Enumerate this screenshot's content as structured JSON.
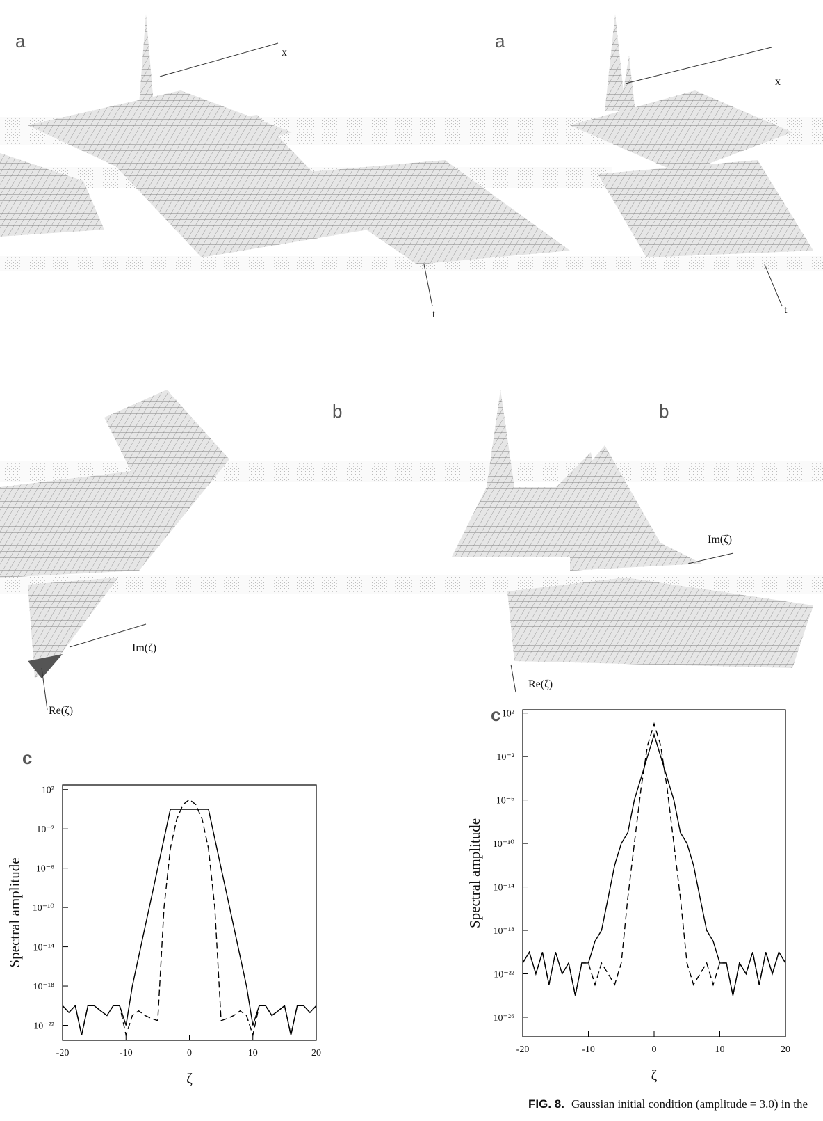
{
  "panels": {
    "a_left": {
      "label": "a",
      "x_axis": "x",
      "t_axis": "t"
    },
    "a_right": {
      "label": "a",
      "x_axis": "x",
      "t_axis": "t"
    },
    "b_left": {
      "label": "b",
      "im_axis": "Im(ζ)",
      "re_axis": "Re(ζ)"
    },
    "b_right": {
      "label": "b",
      "im_axis": "Im(ζ)",
      "re_axis": "Re(ζ)"
    }
  },
  "charts": [
    {
      "type": "line",
      "panel": "c",
      "ylabel": "Spectral amplitude",
      "xlabel": "ζ",
      "log_y": true,
      "xlim": [
        -20,
        20
      ],
      "xticks": [
        -20,
        -10,
        0,
        10,
        20
      ],
      "ylim": [
        3e-24,
        300
      ],
      "yticks": [
        {
          "value": 100,
          "label": "10²"
        },
        {
          "value": 0.01,
          "label": "10⁻²"
        },
        {
          "value": 1e-06,
          "label": "10⁻⁶"
        },
        {
          "value": 1e-10,
          "label": "10⁻¹⁰"
        },
        {
          "value": 1e-14,
          "label": "10⁻¹⁴"
        },
        {
          "value": 1e-18,
          "label": "10⁻¹⁸"
        },
        {
          "value": 1e-22,
          "label": "10⁻²²"
        }
      ],
      "x": [
        -20,
        -19,
        -18,
        -17,
        -16,
        -15,
        -14,
        -13,
        -12,
        -11,
        -10,
        -9,
        -8,
        -7,
        -6,
        -5,
        -4,
        -3,
        -2,
        -1,
        0,
        1,
        2,
        3,
        4,
        5,
        6,
        7,
        8,
        9,
        10,
        11,
        12,
        13,
        14,
        15,
        16,
        17,
        18,
        19,
        20
      ],
      "series": [
        {
          "color": "#000",
          "dash": false,
          "values": [
            1e-20,
            2e-21,
            1e-20,
            1e-23,
            1e-20,
            1e-20,
            3e-21,
            1e-21,
            1e-20,
            1e-20,
            1e-22,
            1e-18,
            1e-15,
            1e-12,
            1e-09,
            1e-06,
            0.001,
            1,
            1,
            1,
            1,
            1,
            1,
            1,
            0.001,
            1e-06,
            1e-09,
            1e-12,
            1e-15,
            1e-18,
            1e-22,
            1e-20,
            1e-20,
            1e-21,
            3e-21,
            1e-20,
            1e-23,
            1e-20,
            1e-20,
            2e-21,
            1e-20
          ]
        },
        {
          "color": "#000",
          "dash": true,
          "values": [
            1e-20,
            2e-21,
            1e-20,
            1e-23,
            1e-20,
            1e-20,
            3e-21,
            1e-21,
            1e-20,
            1e-20,
            1e-23,
            1e-21,
            3e-21,
            1e-21,
            5e-22,
            3e-22,
            1e-10,
            0.0001,
            0.1,
            3,
            10,
            3,
            0.1,
            0.0001,
            1e-10,
            3e-22,
            5e-22,
            1e-21,
            3e-21,
            1e-21,
            1e-23,
            1e-20,
            1e-20,
            1e-21,
            3e-21,
            1e-20,
            1e-23,
            1e-20,
            1e-20,
            2e-21,
            1e-20
          ]
        }
      ]
    },
    {
      "type": "line",
      "panel": "c",
      "ylabel": "Spectral amplitude",
      "xlabel": "ζ",
      "log_y": true,
      "xlim": [
        -20,
        20
      ],
      "xticks": [
        -20,
        -10,
        0,
        10,
        20
      ],
      "ylim": [
        1.6e-28,
        200
      ],
      "yticks": [
        {
          "value": 100,
          "label": "10²"
        },
        {
          "value": 0.01,
          "label": "10⁻²"
        },
        {
          "value": 1e-06,
          "label": "10⁻⁶"
        },
        {
          "value": 1e-10,
          "label": "10⁻¹⁰"
        },
        {
          "value": 1e-14,
          "label": "10⁻¹⁴"
        },
        {
          "value": 1e-18,
          "label": "10⁻¹⁸"
        },
        {
          "value": 1e-22,
          "label": "10⁻²²"
        },
        {
          "value": 1e-26,
          "label": "10⁻²⁶"
        }
      ],
      "x": [
        -20,
        -19,
        -18,
        -17,
        -16,
        -15,
        -14,
        -13,
        -12,
        -11,
        -10,
        -9,
        -8,
        -7,
        -6,
        -5,
        -4,
        -3,
        -2,
        -1,
        0,
        1,
        2,
        3,
        4,
        5,
        6,
        7,
        8,
        9,
        10,
        11,
        12,
        13,
        14,
        15,
        16,
        17,
        18,
        19,
        20
      ],
      "series": [
        {
          "color": "#000",
          "dash": false,
          "values": [
            1e-21,
            1e-20,
            1e-22,
            1e-20,
            1e-23,
            1e-20,
            1e-22,
            1e-21,
            1e-24,
            1e-21,
            1e-21,
            1e-19,
            1e-18,
            1e-15,
            1e-12,
            1e-10,
            1e-09,
            1e-06,
            0.0001,
            0.01,
            1,
            0.01,
            0.0001,
            1e-06,
            1e-09,
            1e-10,
            1e-12,
            1e-15,
            1e-18,
            1e-19,
            1e-21,
            1e-21,
            1e-24,
            1e-21,
            1e-22,
            1e-20,
            1e-23,
            1e-20,
            1e-22,
            1e-20,
            1e-21
          ]
        },
        {
          "color": "#000",
          "dash": true,
          "values": [
            1e-21,
            1e-20,
            1e-22,
            1e-20,
            1e-23,
            1e-20,
            1e-22,
            1e-21,
            1e-24,
            1e-21,
            1e-21,
            1e-23,
            1e-21,
            1e-22,
            1e-23,
            1e-21,
            1e-15,
            1e-10,
            1e-05,
            0.1,
            10,
            0.1,
            1e-05,
            1e-10,
            1e-15,
            1e-21,
            1e-23,
            1e-22,
            1e-21,
            1e-23,
            1e-21,
            1e-21,
            1e-24,
            1e-21,
            1e-22,
            1e-20,
            1e-23,
            1e-20,
            1e-22,
            1e-20,
            1e-21
          ]
        }
      ]
    }
  ],
  "caption": {
    "label": "FIG. 8.",
    "text": "Gaussian initial condition (amplitude = 3.0) in the"
  }
}
